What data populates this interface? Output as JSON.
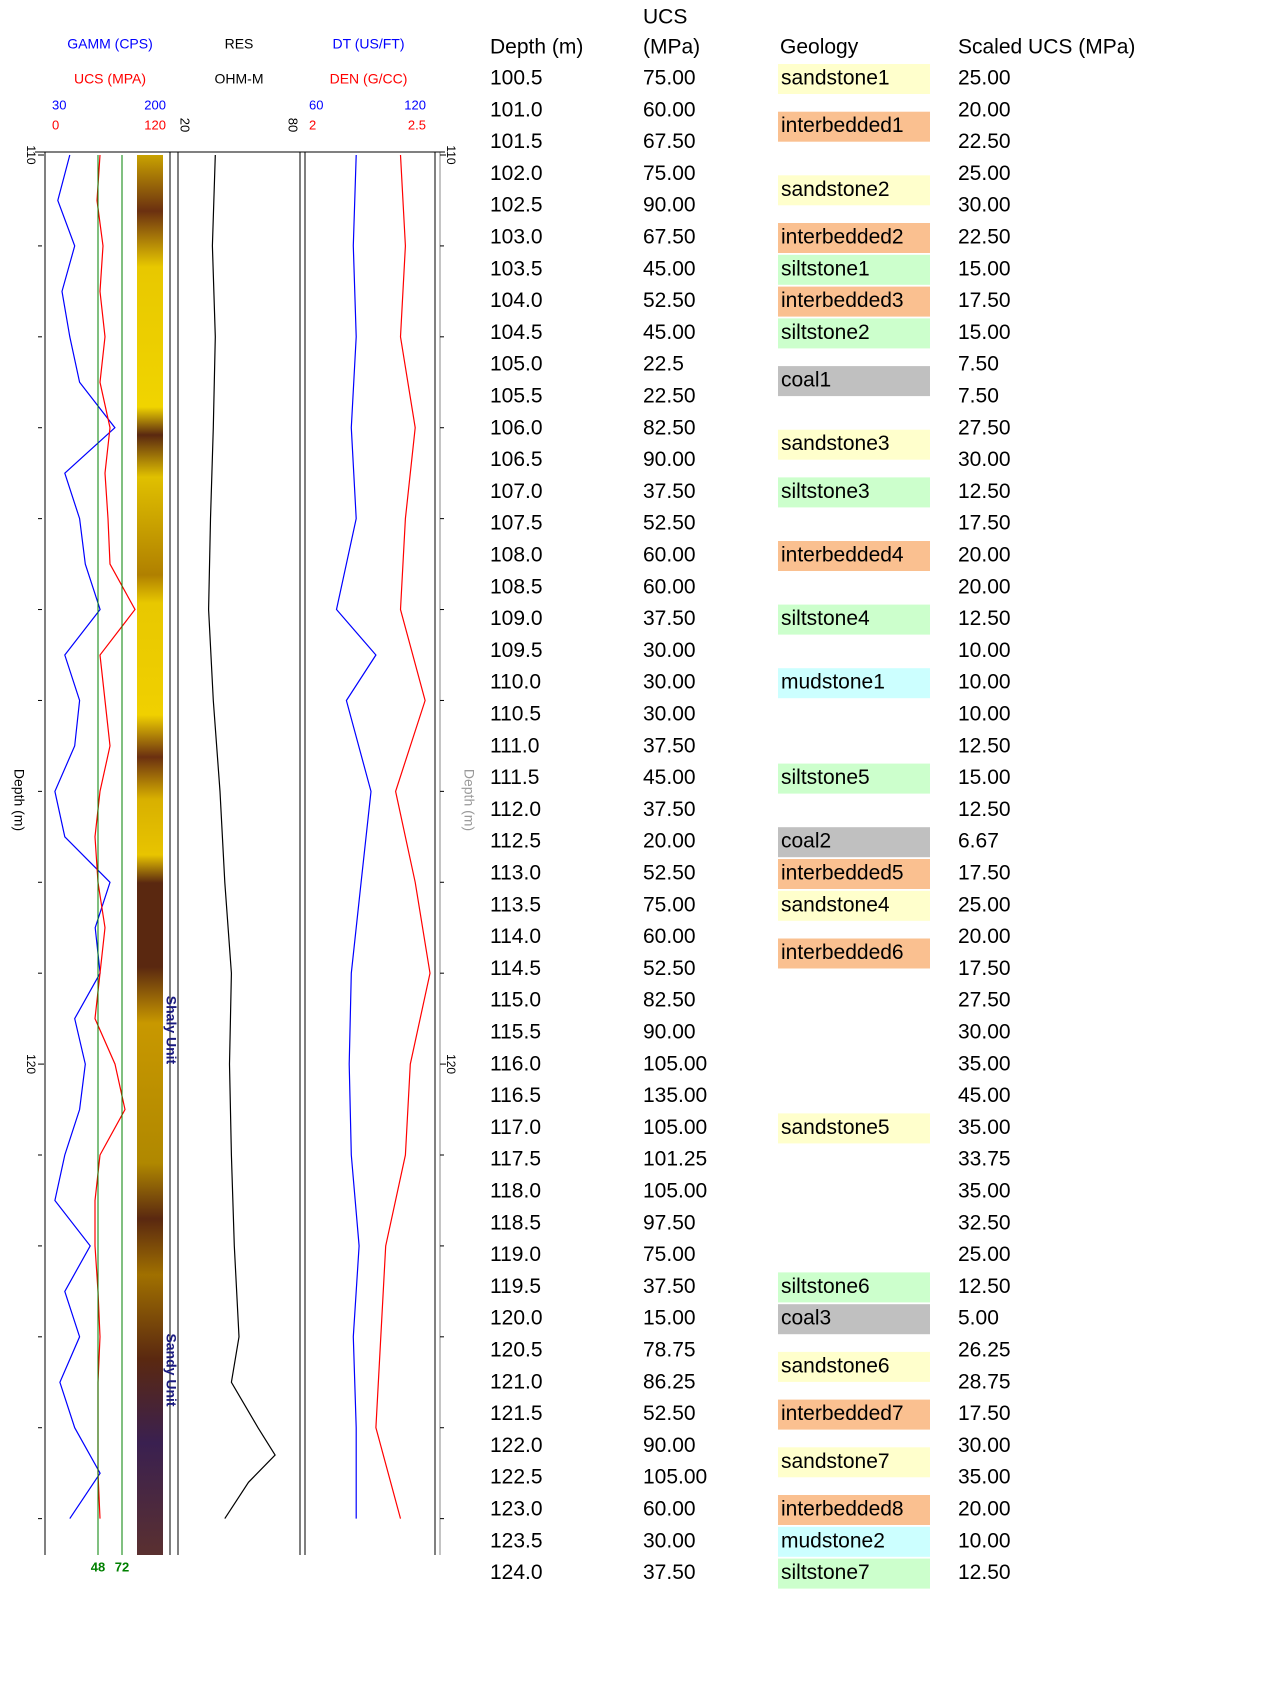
{
  "log": {
    "ylabel": "Depth (m)",
    "ylim": [
      110,
      125.4
    ],
    "yticks": [
      110,
      120
    ],
    "minor_yticks": [
      111,
      112,
      113,
      114,
      115,
      116,
      117,
      118,
      119,
      121,
      122,
      123,
      124,
      125
    ],
    "tracks": [
      {
        "curves": [
          {
            "name": "GAMM (CPS)",
            "color": "#0000ff",
            "xlim": [
              30,
              200
            ],
            "depth": [
              110,
              110.5,
              111,
              111.5,
              112,
              112.5,
              113,
              113.5,
              114,
              114.5,
              115,
              115.5,
              116,
              116.5,
              117,
              117.5,
              118,
              118.5,
              119,
              119.5,
              120,
              120.5,
              121,
              121.5,
              122,
              122.5,
              123,
              123.5,
              124,
              124.5,
              125
            ],
            "values": [
              58,
              41,
              65,
              47,
              58,
              72,
              122,
              51,
              72,
              80,
              101,
              51,
              72,
              65,
              37,
              51,
              115,
              94,
              101,
              65,
              80,
              72,
              51,
              37,
              87,
              51,
              72,
              44,
              65,
              101,
              58
            ]
          },
          {
            "name": "UCS (MPA)",
            "color": "#ff0000",
            "xlim": [
              0,
              120
            ],
            "depth": [
              110,
              110.5,
              111,
              111.5,
              112,
              112.5,
              113,
              113.5,
              114,
              114.5,
              115,
              115.5,
              116,
              116.5,
              117,
              117.5,
              118,
              118.5,
              119,
              119.5,
              120,
              120.5,
              121,
              121.5,
              122,
              122.5,
              123,
              123.5,
              124,
              124.5,
              125
            ],
            "values": [
              50,
              47,
              53,
              50,
              55,
              50,
              60,
              55,
              58,
              60,
              85,
              50,
              55,
              60,
              50,
              45,
              48,
              55,
              50,
              45,
              65,
              75,
              50,
              45,
              45,
              48,
              50,
              48,
              48,
              48,
              50
            ]
          }
        ],
        "cutoffs": {
          "color": "#008000",
          "values": [
            48,
            72
          ]
        },
        "annotations": [
          "Shaly Unit",
          "Sandy Unit"
        ]
      },
      {
        "curves": [
          {
            "name": "RES",
            "subtitle": "OHM-M",
            "color": "#000000",
            "xlim": [
              20,
              80
            ],
            "depth": [
              110,
              111,
              112,
              113,
              114,
              115,
              116,
              117,
              118,
              119,
              120,
              121,
              122,
              123,
              123.5,
              124,
              124.3,
              124.6,
              125
            ],
            "values": [
              37.5,
              36,
              37.5,
              36.5,
              35,
              34,
              36.5,
              40,
              42.5,
              46,
              45,
              46,
              47.5,
              50,
              46,
              60,
              69,
              55,
              42.5
            ]
          }
        ]
      },
      {
        "curves": [
          {
            "name": "DT (US/FT)",
            "color": "#0000ff",
            "xlim": [
              60,
              120
            ],
            "depth": [
              110,
              111,
              112,
              113,
              114,
              115,
              115.5,
              116,
              117,
              118,
              119,
              120,
              121,
              122,
              123,
              124,
              125
            ],
            "values": [
              84,
              82.6,
              84,
              81.6,
              84,
              74.4,
              93.6,
              79.2,
              91.2,
              86.4,
              81.6,
              80.6,
              81.6,
              85.4,
              82.6,
              84,
              84
            ]
          },
          {
            "name": "DEN (G/CC)",
            "color": "#ff0000",
            "xlim": [
              2,
              2.5
            ],
            "depth": [
              110,
              111,
              112,
              113,
              114,
              115,
              116,
              117,
              118,
              119,
              120,
              121,
              122,
              123,
              124,
              125
            ],
            "values": [
              2.38,
              2.4,
              2.38,
              2.44,
              2.4,
              2.38,
              2.48,
              2.36,
              2.44,
              2.5,
              2.42,
              2.4,
              2.32,
              2.3,
              2.28,
              2.38
            ]
          }
        ]
      }
    ]
  },
  "table": {
    "headers": [
      [
        "Depth (m)"
      ],
      [
        "UCS",
        "(MPa)"
      ],
      [
        "Geology"
      ],
      [
        "Scaled UCS (MPa)"
      ]
    ],
    "rows": [
      [
        "100.5",
        "75.00",
        "25.00"
      ],
      [
        "101.0",
        "60.00",
        "20.00"
      ],
      [
        "101.5",
        "67.50",
        "22.50"
      ],
      [
        "102.0",
        "75.00",
        "25.00"
      ],
      [
        "102.5",
        "90.00",
        "30.00"
      ],
      [
        "103.0",
        "67.50",
        "22.50"
      ],
      [
        "103.5",
        "45.00",
        "15.00"
      ],
      [
        "104.0",
        "52.50",
        "17.50"
      ],
      [
        "104.5",
        "45.00",
        "15.00"
      ],
      [
        "105.0",
        "22.5",
        "7.50"
      ],
      [
        "105.5",
        "22.50",
        "7.50"
      ],
      [
        "106.0",
        "82.50",
        "27.50"
      ],
      [
        "106.5",
        "90.00",
        "30.00"
      ],
      [
        "107.0",
        "37.50",
        "12.50"
      ],
      [
        "107.5",
        "52.50",
        "17.50"
      ],
      [
        "108.0",
        "60.00",
        "20.00"
      ],
      [
        "108.5",
        "60.00",
        "20.00"
      ],
      [
        "109.0",
        "37.50",
        "12.50"
      ],
      [
        "109.5",
        "30.00",
        "10.00"
      ],
      [
        "110.0",
        "30.00",
        "10.00"
      ],
      [
        "110.5",
        "30.00",
        "10.00"
      ],
      [
        "111.0",
        "37.50",
        "12.50"
      ],
      [
        "111.5",
        "45.00",
        "15.00"
      ],
      [
        "112.0",
        "37.50",
        "12.50"
      ],
      [
        "112.5",
        "20.00",
        "6.67"
      ],
      [
        "113.0",
        "52.50",
        "17.50"
      ],
      [
        "113.5",
        "75.00",
        "25.00"
      ],
      [
        "114.0",
        "60.00",
        "20.00"
      ],
      [
        "114.5",
        "52.50",
        "17.50"
      ],
      [
        "115.0",
        "82.50",
        "27.50"
      ],
      [
        "115.5",
        "90.00",
        "30.00"
      ],
      [
        "116.0",
        "105.00",
        "35.00"
      ],
      [
        "116.5",
        "135.00",
        "45.00"
      ],
      [
        "117.0",
        "105.00",
        "35.00"
      ],
      [
        "117.5",
        "101.25",
        "33.75"
      ],
      [
        "118.0",
        "105.00",
        "35.00"
      ],
      [
        "118.5",
        "97.50",
        "32.50"
      ],
      [
        "119.0",
        "75.00",
        "25.00"
      ],
      [
        "119.5",
        "37.50",
        "12.50"
      ],
      [
        "120.0",
        "15.00",
        "5.00"
      ],
      [
        "120.5",
        "78.75",
        "26.25"
      ],
      [
        "121.0",
        "86.25",
        "28.75"
      ],
      [
        "121.5",
        "52.50",
        "17.50"
      ],
      [
        "122.0",
        "90.00",
        "30.00"
      ],
      [
        "122.5",
        "105.00",
        "35.00"
      ],
      [
        "123.0",
        "60.00",
        "20.00"
      ],
      [
        "123.5",
        "30.00",
        "10.00"
      ],
      [
        "124.0",
        "37.50",
        "12.50"
      ]
    ],
    "geology": [
      {
        "label": "sandstone1",
        "color": "#ffffcc",
        "row": 0,
        "span": 1
      },
      {
        "label": "interbedded1",
        "color": "#fac090",
        "row": 1,
        "span": 2
      },
      {
        "label": "sandstone2",
        "color": "#ffffcc",
        "row": 3,
        "span": 2
      },
      {
        "label": "interbedded2",
        "color": "#fac090",
        "row": 5,
        "span": 1
      },
      {
        "label": "siltstone1",
        "color": "#ccffcc",
        "row": 6,
        "span": 1
      },
      {
        "label": "interbedded3",
        "color": "#fac090",
        "row": 7,
        "span": 1
      },
      {
        "label": "siltstone2",
        "color": "#ccffcc",
        "row": 8,
        "span": 1
      },
      {
        "label": "coal1",
        "color": "#c0c0c0",
        "row": 9,
        "span": 2
      },
      {
        "label": "sandstone3",
        "color": "#ffffcc",
        "row": 11,
        "span": 2
      },
      {
        "label": "siltstone3",
        "color": "#ccffcc",
        "row": 13,
        "span": 1
      },
      {
        "label": "interbedded4",
        "color": "#fac090",
        "row": 15,
        "span": 1
      },
      {
        "label": "siltstone4",
        "color": "#ccffcc",
        "row": 17,
        "span": 1
      },
      {
        "label": "mudstone1",
        "color": "#ccffff",
        "row": 19,
        "span": 1
      },
      {
        "label": "siltstone5",
        "color": "#ccffcc",
        "row": 22,
        "span": 1
      },
      {
        "label": "coal2",
        "color": "#c0c0c0",
        "row": 24,
        "span": 1
      },
      {
        "label": "interbedded5",
        "color": "#fac090",
        "row": 25,
        "span": 1
      },
      {
        "label": "sandstone4",
        "color": "#ffffcc",
        "row": 26,
        "span": 1
      },
      {
        "label": "interbedded6",
        "color": "#fac090",
        "row": 27,
        "span": 2
      },
      {
        "label": "sandstone5",
        "color": "#ffffcc",
        "row": 33,
        "span": 1
      },
      {
        "label": "siltstone6",
        "color": "#ccffcc",
        "row": 38,
        "span": 1
      },
      {
        "label": "coal3",
        "color": "#c0c0c0",
        "row": 39,
        "span": 1
      },
      {
        "label": "sandstone6",
        "color": "#ffffcc",
        "row": 40,
        "span": 2
      },
      {
        "label": "interbedded7",
        "color": "#fac090",
        "row": 42,
        "span": 1
      },
      {
        "label": "sandstone7",
        "color": "#ffffcc",
        "row": 43,
        "span": 2
      },
      {
        "label": "interbedded8",
        "color": "#fac090",
        "row": 45,
        "span": 1
      },
      {
        "label": "mudstone2",
        "color": "#ccffff",
        "row": 46,
        "span": 1
      },
      {
        "label": "siltstone7",
        "color": "#ccffcc",
        "row": 47,
        "span": 1
      }
    ]
  }
}
